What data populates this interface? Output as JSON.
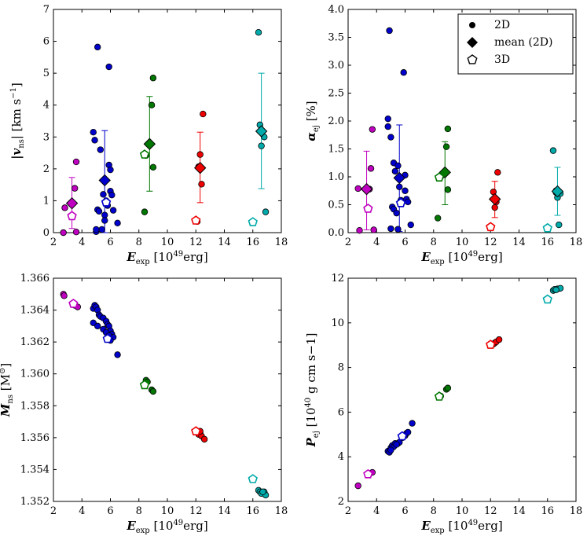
{
  "chart_data": [
    {
      "type": "scatter",
      "id": "vns",
      "ylabel_parts": [
        "|v",
        "ns",
        "| [km s",
        "−1",
        "]"
      ],
      "xlabel_parts": [
        "E",
        "exp",
        " [10",
        "49",
        "erg]"
      ],
      "xlim": [
        2,
        18
      ],
      "ylim": [
        0,
        7
      ],
      "xticks": [
        2,
        4,
        6,
        8,
        10,
        12,
        14,
        16,
        18
      ],
      "yticks": [
        0,
        1,
        2,
        3,
        4,
        5,
        6,
        7
      ],
      "ytick_labels": [
        "0",
        "1",
        "2",
        "3",
        "4",
        "5",
        "6",
        "7"
      ],
      "groups": [
        {
          "color": "#c000c0",
          "points2d": [
            [
              2.7,
              0.0
            ],
            [
              2.8,
              0.78
            ],
            [
              3.5,
              1.39
            ],
            [
              3.6,
              2.22
            ],
            [
              3.6,
              0.02
            ]
          ],
          "mean": [
            3.3,
            0.92
          ],
          "err": [
            0.13,
            1.73
          ],
          "points3d": [
            [
              3.3,
              0.52
            ]
          ]
        },
        {
          "color": "#0000cc",
          "points2d": [
            [
              4.8,
              3.15
            ],
            [
              4.9,
              2.9
            ],
            [
              5.1,
              5.82
            ],
            [
              5.0,
              0.03
            ],
            [
              5.1,
              0.72
            ],
            [
              5.2,
              0.67
            ],
            [
              5.3,
              2.6
            ],
            [
              5.5,
              1.2
            ],
            [
              5.6,
              0.55
            ],
            [
              5.7,
              1.0
            ],
            [
              5.8,
              0.85
            ],
            [
              5.9,
              5.2
            ],
            [
              5.9,
              2.12
            ],
            [
              6.0,
              1.3
            ],
            [
              6.1,
              1.18
            ],
            [
              6.0,
              1.97
            ],
            [
              6.2,
              0.7
            ],
            [
              5.6,
              0.38
            ],
            [
              5.4,
              0.1
            ],
            [
              6.5,
              0.3
            ],
            [
              5.0,
              0.1
            ]
          ],
          "mean": [
            5.6,
            1.64
          ],
          "err": [
            0.0,
            3.2
          ],
          "points3d": [
            [
              5.7,
              0.95
            ]
          ]
        },
        {
          "color": "#007700",
          "points2d": [
            [
              8.4,
              0.65
            ],
            [
              9.0,
              4.85
            ],
            [
              8.9,
              4.0
            ],
            [
              9.0,
              2.05
            ],
            [
              8.5,
              2.42
            ]
          ],
          "mean": [
            8.75,
            2.78
          ],
          "err": [
            1.3,
            4.27
          ],
          "points3d": [
            [
              8.4,
              2.45
            ]
          ]
        },
        {
          "color": "#ee0000",
          "points2d": [
            [
              12.1,
              0.35
            ],
            [
              12.3,
              2.45
            ],
            [
              12.4,
              1.52
            ],
            [
              12.5,
              3.72
            ],
            [
              12.2,
              2.07
            ]
          ],
          "mean": [
            12.3,
            2.03
          ],
          "err": [
            0.94,
            3.15
          ],
          "points3d": [
            [
              12.0,
              0.38
            ]
          ]
        },
        {
          "color": "#00aaaa",
          "points2d": [
            [
              16.4,
              6.28
            ],
            [
              16.5,
              3.38
            ],
            [
              16.6,
              3.22
            ],
            [
              16.8,
              3.0
            ],
            [
              16.9,
              0.65
            ],
            [
              16.6,
              2.72
            ]
          ],
          "mean": [
            16.6,
            3.18
          ],
          "err": [
            1.38,
            5.0
          ],
          "points3d": [
            [
              16.0,
              0.33
            ]
          ]
        }
      ]
    },
    {
      "type": "scatter",
      "id": "alpha",
      "ylabel_parts": [
        "α",
        "ej",
        " [%]",
        "",
        ""
      ],
      "xlabel_parts": [
        "E",
        "exp",
        " [10",
        "49",
        "erg]"
      ],
      "xlim": [
        2,
        18
      ],
      "ylim": [
        0,
        4
      ],
      "xticks": [
        2,
        4,
        6,
        8,
        10,
        12,
        14,
        16,
        18
      ],
      "yticks": [
        0,
        0.5,
        1,
        1.5,
        2,
        2.5,
        3,
        3.5,
        4
      ],
      "ytick_labels": [
        "0.0",
        "0.5",
        "1.0",
        "1.5",
        "2.0",
        "2.5",
        "3.0",
        "3.5",
        "4.0"
      ],
      "legend": [
        "2D",
        "mean (2D)",
        "3D"
      ],
      "groups": [
        {
          "color": "#c000c0",
          "points2d": [
            [
              2.7,
              0.79
            ],
            [
              2.8,
              0.04
            ],
            [
              3.5,
              0.78
            ],
            [
              3.6,
              1.15
            ],
            [
              3.7,
              1.85
            ],
            [
              3.8,
              0.05
            ]
          ],
          "mean": [
            3.3,
            0.78
          ],
          "err": [
            0.05,
            1.46
          ],
          "points3d": [
            [
              3.4,
              0.43
            ]
          ]
        },
        {
          "color": "#0000cc",
          "points2d": [
            [
              4.9,
              3.62
            ],
            [
              4.8,
              2.04
            ],
            [
              4.8,
              1.9
            ],
            [
              5.0,
              1.71
            ],
            [
              5.2,
              1.25
            ],
            [
              5.3,
              1.1
            ],
            [
              5.5,
              1.2
            ],
            [
              5.6,
              0.82
            ],
            [
              5.9,
              2.87
            ],
            [
              6.0,
              1.03
            ],
            [
              6.0,
              0.75
            ],
            [
              6.1,
              0.6
            ],
            [
              6.2,
              0.55
            ],
            [
              5.1,
              0.46
            ],
            [
              5.2,
              0.42
            ],
            [
              5.5,
              0.06
            ],
            [
              6.4,
              0.14
            ],
            [
              5.0,
              0.07
            ],
            [
              5.4,
              0.35
            ],
            [
              5.7,
              0.58
            ]
          ],
          "mean": [
            5.6,
            0.98
          ],
          "err": [
            0.02,
            1.93
          ],
          "points3d": [
            [
              5.7,
              0.53
            ]
          ]
        },
        {
          "color": "#007700",
          "points2d": [
            [
              8.3,
              0.26
            ],
            [
              9.0,
              1.86
            ],
            [
              8.9,
              1.54
            ],
            [
              9.0,
              0.77
            ],
            [
              8.5,
              1.0
            ]
          ],
          "mean": [
            8.8,
            1.08
          ],
          "err": [
            0.5,
            1.63
          ],
          "points3d": [
            [
              8.4,
              0.99
            ]
          ]
        },
        {
          "color": "#ee0000",
          "points2d": [
            [
              12.0,
              0.11
            ],
            [
              12.2,
              0.73
            ],
            [
              12.4,
              0.55
            ],
            [
              12.5,
              1.08
            ],
            [
              12.3,
              0.45
            ]
          ],
          "mean": [
            12.3,
            0.6
          ],
          "err": [
            0.27,
            0.92
          ],
          "points3d": [
            [
              12.0,
              0.1
            ]
          ]
        },
        {
          "color": "#00aaaa",
          "points2d": [
            [
              16.4,
              1.47
            ],
            [
              16.6,
              0.72
            ],
            [
              16.7,
              0.63
            ],
            [
              16.8,
              0.14
            ],
            [
              16.9,
              0.7
            ],
            [
              16.6,
              0.75
            ]
          ],
          "mean": [
            16.7,
            0.74
          ],
          "err": [
            0.31,
            1.17
          ],
          "points3d": [
            [
              16.0,
              0.08
            ]
          ]
        }
      ]
    },
    {
      "type": "scatter",
      "id": "mns",
      "ylabel_parts": [
        "M",
        "ns",
        " [M",
        "⊙",
        "]"
      ],
      "xlabel_parts": [
        "E",
        "exp",
        " [10",
        "49",
        "erg]"
      ],
      "xlim": [
        2,
        18
      ],
      "ylim": [
        1.352,
        1.366
      ],
      "xticks": [
        2,
        4,
        6,
        8,
        10,
        12,
        14,
        16,
        18
      ],
      "yticks": [
        1.352,
        1.354,
        1.356,
        1.358,
        1.36,
        1.362,
        1.364,
        1.366
      ],
      "ytick_labels": [
        "1.352",
        "1.354",
        "1.356",
        "1.358",
        "1.360",
        "1.362",
        "1.364",
        "1.366"
      ],
      "groups": [
        {
          "color": "#c000c0",
          "points2d": [
            [
              2.7,
              1.365
            ],
            [
              2.75,
              1.3649
            ],
            [
              3.5,
              1.3643
            ],
            [
              3.7,
              1.3642
            ]
          ],
          "points3d": [
            [
              3.4,
              1.3644
            ]
          ]
        },
        {
          "color": "#0000cc",
          "points2d": [
            [
              4.8,
              1.3641
            ],
            [
              4.9,
              1.3643
            ],
            [
              5.0,
              1.3642
            ],
            [
              5.1,
              1.364
            ],
            [
              5.2,
              1.3637
            ],
            [
              5.3,
              1.3636
            ],
            [
              5.5,
              1.3635
            ],
            [
              5.7,
              1.3633
            ],
            [
              5.8,
              1.3631
            ],
            [
              5.9,
              1.363
            ],
            [
              6.0,
              1.3627
            ],
            [
              6.1,
              1.3625
            ],
            [
              6.2,
              1.3623
            ],
            [
              6.5,
              1.3612
            ],
            [
              4.8,
              1.3632
            ],
            [
              5.1,
              1.363
            ],
            [
              5.5,
              1.3628
            ],
            [
              5.7,
              1.3626
            ],
            [
              5.9,
              1.3624
            ],
            [
              6.0,
              1.3621
            ]
          ],
          "points3d": [
            [
              5.8,
              1.3622
            ]
          ]
        },
        {
          "color": "#007700",
          "points2d": [
            [
              8.5,
              1.3596
            ],
            [
              8.6,
              1.3595
            ],
            [
              8.9,
              1.359
            ],
            [
              9.0,
              1.3589
            ]
          ],
          "points3d": [
            [
              8.4,
              1.3593
            ]
          ]
        },
        {
          "color": "#ee0000",
          "points2d": [
            [
              12.2,
              1.3562
            ],
            [
              12.3,
              1.3563
            ],
            [
              12.4,
              1.3561
            ],
            [
              12.6,
              1.3559
            ],
            [
              12.3,
              1.3564
            ]
          ],
          "points3d": [
            [
              12.0,
              1.3564
            ]
          ]
        },
        {
          "color": "#00aaaa",
          "points2d": [
            [
              16.4,
              1.3527
            ],
            [
              16.5,
              1.3526
            ],
            [
              16.6,
              1.3525
            ],
            [
              16.8,
              1.3526
            ],
            [
              16.9,
              1.3524
            ],
            [
              16.7,
              1.3526
            ]
          ],
          "points3d": [
            [
              16.0,
              1.3534
            ]
          ]
        }
      ]
    },
    {
      "type": "scatter",
      "id": "pej",
      "ylabel_parts": [
        "P",
        "ej",
        " [10",
        "40",
        " g cm s−1]"
      ],
      "xlabel_parts": [
        "E",
        "exp",
        " [10",
        "49",
        "erg]"
      ],
      "xlim": [
        2,
        18
      ],
      "ylim": [
        2,
        12
      ],
      "xticks": [
        2,
        4,
        6,
        8,
        10,
        12,
        14,
        16,
        18
      ],
      "yticks": [
        2,
        4,
        6,
        8,
        10,
        12
      ],
      "ytick_labels": [
        "2",
        "4",
        "6",
        "8",
        "10",
        "12"
      ],
      "groups": [
        {
          "color": "#c000c0",
          "points2d": [
            [
              2.7,
              2.7
            ],
            [
              3.5,
              3.25
            ],
            [
              3.7,
              3.3
            ]
          ],
          "points3d": [
            [
              3.4,
              3.22
            ]
          ]
        },
        {
          "color": "#0000cc",
          "points2d": [
            [
              4.8,
              4.25
            ],
            [
              4.9,
              4.2
            ],
            [
              5.0,
              4.4
            ],
            [
              5.1,
              4.5
            ],
            [
              5.2,
              4.45
            ],
            [
              5.3,
              4.6
            ],
            [
              5.5,
              4.6
            ],
            [
              5.6,
              4.65
            ],
            [
              5.8,
              4.85
            ],
            [
              6.0,
              4.95
            ],
            [
              6.1,
              5.05
            ],
            [
              6.2,
              5.1
            ],
            [
              6.5,
              5.5
            ],
            [
              5.0,
              4.3
            ],
            [
              5.4,
              4.55
            ]
          ],
          "points3d": [
            [
              5.8,
              4.92
            ]
          ]
        },
        {
          "color": "#007700",
          "points2d": [
            [
              8.4,
              6.7
            ],
            [
              8.5,
              6.72
            ],
            [
              8.9,
              7.02
            ],
            [
              9.0,
              7.08
            ]
          ],
          "points3d": [
            [
              8.4,
              6.7
            ]
          ]
        },
        {
          "color": "#ee0000",
          "points2d": [
            [
              12.2,
              9.05
            ],
            [
              12.3,
              9.1
            ],
            [
              12.4,
              9.15
            ],
            [
              12.6,
              9.25
            ]
          ],
          "points3d": [
            [
              12.0,
              9.02
            ]
          ]
        },
        {
          "color": "#00aaaa",
          "points2d": [
            [
              16.4,
              11.45
            ],
            [
              16.5,
              11.5
            ],
            [
              16.7,
              11.52
            ],
            [
              16.9,
              11.55
            ],
            [
              16.6,
              11.48
            ]
          ],
          "points3d": [
            [
              16.0,
              11.05
            ]
          ]
        }
      ]
    }
  ]
}
